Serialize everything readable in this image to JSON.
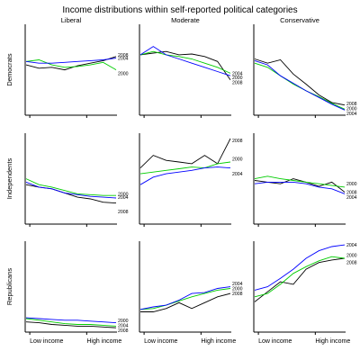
{
  "chart_data": {
    "type": "line",
    "title": "Income distributions within self-reported political categories",
    "columns": [
      "Liberal",
      "Moderate",
      "Conservative"
    ],
    "rows": [
      "Democrats",
      "Independents",
      "Republicans"
    ],
    "x_tick_labels": [
      "Low income",
      "High income"
    ],
    "x_tick_positions": [
      0.05,
      0.67
    ],
    "colors": {
      "2000": "#00cc00",
      "2004": "#0000ff",
      "2008": "#000000"
    },
    "grid": false,
    "panels": [
      {
        "row": "Democrats",
        "column": "Liberal",
        "series": [
          {
            "name": "2000",
            "values": [
              0.62,
              0.64,
              0.58,
              0.55,
              0.56,
              0.58,
              0.61,
              0.52
            ]
          },
          {
            "name": "2004",
            "values": [
              0.62,
              0.6,
              0.6,
              0.61,
              0.62,
              0.63,
              0.64,
              0.66
            ]
          },
          {
            "name": "2008",
            "values": [
              0.58,
              0.54,
              0.55,
              0.52,
              0.57,
              0.6,
              0.63,
              0.68
            ]
          }
        ],
        "labels": [
          {
            "text": "2008",
            "y": 0.7
          },
          {
            "text": "2004",
            "y": 0.66
          },
          {
            "text": "2000",
            "y": 0.48
          }
        ]
      },
      {
        "row": "Democrats",
        "column": "Moderate",
        "series": [
          {
            "name": "2000",
            "values": [
              0.7,
              0.74,
              0.7,
              0.68,
              0.65,
              0.6,
              0.55,
              0.48
            ]
          },
          {
            "name": "2004",
            "values": [
              0.7,
              0.8,
              0.7,
              0.65,
              0.6,
              0.55,
              0.5,
              0.45
            ]
          },
          {
            "name": "2008",
            "values": [
              0.7,
              0.72,
              0.74,
              0.7,
              0.71,
              0.68,
              0.62,
              0.4
            ]
          }
        ],
        "labels": [
          {
            "text": "2004",
            "y": 0.48
          },
          {
            "text": "2000",
            "y": 0.43
          },
          {
            "text": "2008",
            "y": 0.37
          }
        ]
      },
      {
        "row": "Democrats",
        "column": "Conservative",
        "series": [
          {
            "name": "2000",
            "values": [
              0.6,
              0.55,
              0.45,
              0.35,
              0.27,
              0.2,
              0.12,
              0.05
            ]
          },
          {
            "name": "2004",
            "values": [
              0.63,
              0.58,
              0.45,
              0.36,
              0.27,
              0.19,
              0.11,
              0.04
            ]
          },
          {
            "name": "2008",
            "values": [
              0.65,
              0.6,
              0.64,
              0.47,
              0.35,
              0.22,
              0.13,
              0.1
            ]
          }
        ],
        "labels": [
          {
            "text": "2008",
            "y": 0.12
          },
          {
            "text": "2000",
            "y": 0.06
          },
          {
            "text": "2004",
            "y": 0.0
          }
        ]
      },
      {
        "row": "Independents",
        "column": "Liberal",
        "series": [
          {
            "name": "2000",
            "values": [
              0.52,
              0.45,
              0.42,
              0.38,
              0.34,
              0.33,
              0.32,
              0.32
            ]
          },
          {
            "name": "2004",
            "values": [
              0.48,
              0.42,
              0.4,
              0.35,
              0.33,
              0.31,
              0.3,
              0.29
            ]
          },
          {
            "name": "2008",
            "values": [
              0.45,
              0.42,
              0.4,
              0.35,
              0.3,
              0.28,
              0.24,
              0.23
            ]
          }
        ],
        "labels": [
          {
            "text": "2000",
            "y": 0.34
          },
          {
            "text": "2004",
            "y": 0.3
          },
          {
            "text": "2008",
            "y": 0.13
          }
        ]
      },
      {
        "row": "Independents",
        "column": "Moderate",
        "series": [
          {
            "name": "2000",
            "values": [
              0.58,
              0.6,
              0.62,
              0.64,
              0.66,
              0.65,
              0.7,
              0.72
            ]
          },
          {
            "name": "2004",
            "values": [
              0.45,
              0.54,
              0.58,
              0.6,
              0.62,
              0.65,
              0.66,
              0.65
            ]
          },
          {
            "name": "2008",
            "values": [
              0.65,
              0.8,
              0.74,
              0.72,
              0.7,
              0.8,
              0.7,
              1.0
            ]
          }
        ],
        "labels": [
          {
            "text": "2008",
            "y": 0.98
          },
          {
            "text": "2000",
            "y": 0.76
          },
          {
            "text": "2004",
            "y": 0.58
          }
        ]
      },
      {
        "row": "Independents",
        "column": "Conservative",
        "series": [
          {
            "name": "2000",
            "values": [
              0.52,
              0.55,
              0.52,
              0.5,
              0.48,
              0.46,
              0.44,
              0.42
            ]
          },
          {
            "name": "2004",
            "values": [
              0.46,
              0.48,
              0.48,
              0.48,
              0.46,
              0.42,
              0.4,
              0.34
            ]
          },
          {
            "name": "2008",
            "values": [
              0.5,
              0.48,
              0.46,
              0.52,
              0.48,
              0.43,
              0.48,
              0.36
            ]
          }
        ],
        "labels": [
          {
            "text": "2000",
            "y": 0.46
          },
          {
            "text": "2008",
            "y": 0.36
          },
          {
            "text": "2004",
            "y": 0.3
          }
        ]
      },
      {
        "row": "Republicans",
        "column": "Liberal",
        "series": [
          {
            "name": "2000",
            "values": [
              0.14,
              0.12,
              0.1,
              0.08,
              0.07,
              0.07,
              0.06,
              0.05
            ]
          },
          {
            "name": "2004",
            "values": [
              0.15,
              0.14,
              0.13,
              0.12,
              0.12,
              0.11,
              0.1,
              0.09
            ]
          },
          {
            "name": "2008",
            "values": [
              0.1,
              0.09,
              0.07,
              0.06,
              0.05,
              0.05,
              0.04,
              0.03
            ]
          }
        ],
        "labels": [
          {
            "text": "2000",
            "y": 0.12
          },
          {
            "text": "2004",
            "y": 0.06
          },
          {
            "text": "2008",
            "y": 0.0
          }
        ]
      },
      {
        "row": "Republicans",
        "column": "Moderate",
        "series": [
          {
            "name": "2000",
            "values": [
              0.25,
              0.26,
              0.3,
              0.35,
              0.4,
              0.44,
              0.48,
              0.5
            ]
          },
          {
            "name": "2004",
            "values": [
              0.25,
              0.28,
              0.3,
              0.36,
              0.44,
              0.45,
              0.5,
              0.52
            ]
          },
          {
            "name": "2008",
            "values": [
              0.22,
              0.22,
              0.26,
              0.33,
              0.26,
              0.33,
              0.4,
              0.44
            ]
          }
        ],
        "labels": [
          {
            "text": "2004",
            "y": 0.56
          },
          {
            "text": "2000",
            "y": 0.5
          },
          {
            "text": "2008",
            "y": 0.44
          }
        ]
      },
      {
        "row": "Republicans",
        "column": "Conservative",
        "series": [
          {
            "name": "2000",
            "values": [
              0.4,
              0.44,
              0.55,
              0.68,
              0.76,
              0.83,
              0.88,
              0.86
            ]
          },
          {
            "name": "2004",
            "values": [
              0.48,
              0.52,
              0.62,
              0.73,
              0.86,
              0.95,
              1.0,
              1.02
            ]
          },
          {
            "name": "2008",
            "values": [
              0.34,
              0.46,
              0.58,
              0.55,
              0.73,
              0.81,
              0.84,
              0.86
            ]
          }
        ],
        "labels": [
          {
            "text": "2004",
            "y": 1.02
          },
          {
            "text": "2000",
            "y": 0.9
          },
          {
            "text": "2008",
            "y": 0.81
          }
        ]
      }
    ]
  }
}
